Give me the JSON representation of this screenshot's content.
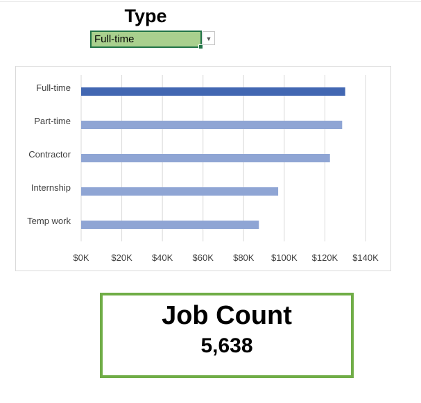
{
  "filter": {
    "title": "Type",
    "selected": "Full-time",
    "arrow_icon": "▼"
  },
  "chart_data": {
    "type": "bar",
    "orientation": "horizontal",
    "categories": [
      "Full-time",
      "Part-time",
      "Contractor",
      "Internship",
      "Temp work"
    ],
    "values": [
      130000,
      128500,
      122500,
      97000,
      87500
    ],
    "xlim": [
      0,
      140000
    ],
    "ticks": [
      0,
      20000,
      40000,
      60000,
      80000,
      100000,
      120000,
      140000
    ],
    "tick_labels": [
      "$0K",
      "$20K",
      "$40K",
      "$60K",
      "$80K",
      "$100K",
      "$120K",
      "$140K"
    ],
    "highlight_category": "Full-time",
    "colors": {
      "highlight": "#4267b2",
      "default": "#8fa5d4",
      "gridline": "#d9d9d9"
    },
    "grid": true
  },
  "kpi": {
    "title": "Job Count",
    "value": "5,638"
  },
  "colors": {
    "kpi_border": "#70ad47",
    "dropdown_fill": "#a9d08e"
  }
}
